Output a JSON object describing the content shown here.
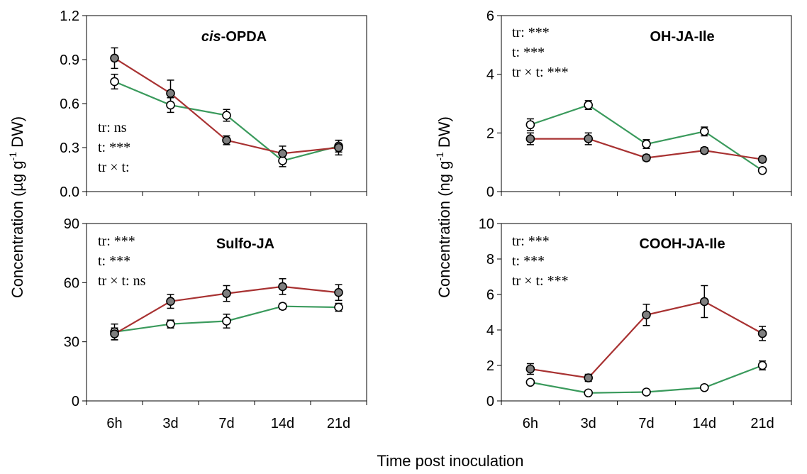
{
  "figure": {
    "x_axis_label": "Time post inoculation",
    "y_label_left": {
      "prefix": "Concentration (µg g",
      "sup": "-1",
      "suffix": " DW)"
    },
    "y_label_right": {
      "prefix": "Concentration (ng g",
      "sup": "-1",
      "suffix": " DW)"
    },
    "x_tick_labels": [
      "6h",
      "3d",
      "7d",
      "14d",
      "21d"
    ]
  },
  "colors": {
    "red_series": "#a83232",
    "green_series": "#3a9a5c",
    "filled_marker": "#7f7f7f",
    "open_marker": "#ffffff"
  },
  "chart_data": [
    {
      "type": "line",
      "title": "cis-OPDA",
      "title_parts": [
        {
          "text": "cis",
          "italic": true
        },
        {
          "text": "-OPDA",
          "italic": false
        }
      ],
      "categories": [
        "6h",
        "3d",
        "7d",
        "14d",
        "21d"
      ],
      "ylim": [
        0,
        1.2
      ],
      "yticks": [
        "0.0",
        "0.3",
        "0.6",
        "0.9",
        "1.2"
      ],
      "stats": [
        "tr: ns",
        "t: ***",
        "tr × t:"
      ],
      "series": [
        {
          "marker": "filled",
          "color": "#a83232",
          "values": [
            0.91,
            0.67,
            0.35,
            0.26,
            0.3
          ],
          "errors": [
            0.07,
            0.09,
            0.03,
            0.05,
            0.05
          ]
        },
        {
          "marker": "open",
          "color": "#3a9a5c",
          "values": [
            0.75,
            0.59,
            0.52,
            0.21,
            0.31
          ],
          "errors": [
            0.05,
            0.05,
            0.04,
            0.04,
            0.04
          ]
        }
      ]
    },
    {
      "type": "line",
      "title": "OH-JA-Ile",
      "title_parts": [
        {
          "text": "OH-JA-Ile",
          "italic": false
        }
      ],
      "categories": [
        "6h",
        "3d",
        "7d",
        "14d",
        "21d"
      ],
      "ylim": [
        0,
        6
      ],
      "yticks": [
        "0",
        "2",
        "4",
        "6"
      ],
      "stats": [
        "tr: ***",
        "t: ***",
        "tr × t: ***"
      ],
      "series": [
        {
          "marker": "filled",
          "color": "#a83232",
          "values": [
            1.8,
            1.8,
            1.15,
            1.4,
            1.1
          ],
          "errors": [
            0.2,
            0.2,
            0.1,
            0.1,
            0.1
          ]
        },
        {
          "marker": "open",
          "color": "#3a9a5c",
          "values": [
            2.28,
            2.95,
            1.62,
            2.05,
            0.72
          ],
          "errors": [
            0.2,
            0.15,
            0.15,
            0.15,
            0.08
          ]
        }
      ]
    },
    {
      "type": "line",
      "title": "Sulfo-JA",
      "title_parts": [
        {
          "text": "Sulfo-JA",
          "italic": false
        }
      ],
      "categories": [
        "6h",
        "3d",
        "7d",
        "14d",
        "21d"
      ],
      "ylim": [
        0,
        90
      ],
      "yticks": [
        "0",
        "30",
        "60",
        "90"
      ],
      "stats": [
        "tr: ***",
        "t: ***",
        "tr × t: ns"
      ],
      "series": [
        {
          "marker": "filled",
          "color": "#a83232",
          "values": [
            34,
            50.5,
            54.5,
            58,
            55
          ],
          "errors": [
            3.0,
            3.5,
            4.0,
            4.0,
            4.0
          ]
        },
        {
          "marker": "open",
          "color": "#3a9a5c",
          "values": [
            35,
            39,
            40.5,
            48,
            47.5
          ],
          "errors": [
            4.0,
            2.0,
            3.5,
            1.5,
            2.0
          ]
        }
      ]
    },
    {
      "type": "line",
      "title": "COOH-JA-Ile",
      "title_parts": [
        {
          "text": "COOH-JA-Ile",
          "italic": false
        }
      ],
      "categories": [
        "6h",
        "3d",
        "7d",
        "14d",
        "21d"
      ],
      "ylim": [
        0,
        10
      ],
      "yticks": [
        "0",
        "2",
        "4",
        "6",
        "8",
        "10"
      ],
      "stats": [
        "tr: ***",
        "t: ***",
        "tr × t: ***"
      ],
      "series": [
        {
          "marker": "filled",
          "color": "#a83232",
          "values": [
            1.8,
            1.3,
            4.85,
            5.6,
            3.8
          ],
          "errors": [
            0.3,
            0.2,
            0.6,
            0.9,
            0.4
          ]
        },
        {
          "marker": "open",
          "color": "#3a9a5c",
          "values": [
            1.05,
            0.45,
            0.5,
            0.75,
            2.0
          ],
          "errors": [
            0.1,
            0.05,
            0.05,
            0.08,
            0.25
          ]
        }
      ]
    }
  ]
}
